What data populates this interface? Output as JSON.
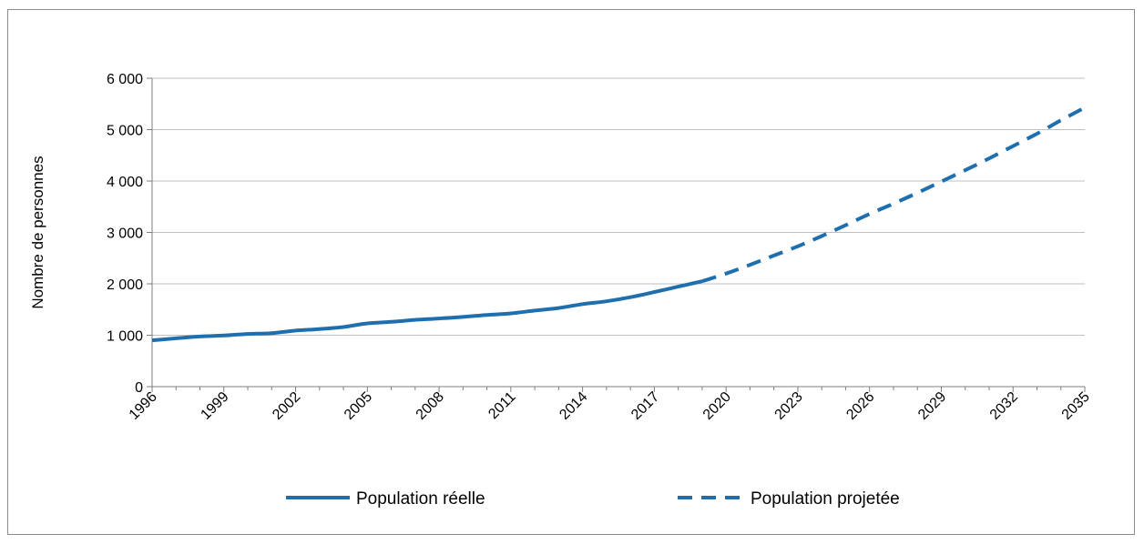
{
  "chart_data": {
    "type": "line",
    "title": "",
    "ylabel": "Nombre de personnes",
    "xlabel": "",
    "xlim": [
      1996,
      2035
    ],
    "ylim": [
      0,
      6000
    ],
    "grid": "horizontal",
    "legend_position": "bottom",
    "x_tick_labels": [
      "1996",
      "1999",
      "2002",
      "2005",
      "2008",
      "2011",
      "2014",
      "2017",
      "2020",
      "2023",
      "2026",
      "2029",
      "2032",
      "2035"
    ],
    "y_tick_labels": [
      "0",
      "1 000",
      "2 000",
      "3 000",
      "4 000",
      "5 000",
      "6 000"
    ],
    "series": [
      {
        "name": "Population réelle",
        "style": "solid",
        "color": "#1f6fae",
        "points": [
          [
            1996,
            900
          ],
          [
            1997,
            940
          ],
          [
            1998,
            975
          ],
          [
            1999,
            995
          ],
          [
            2000,
            1025
          ],
          [
            2001,
            1040
          ],
          [
            2002,
            1090
          ],
          [
            2003,
            1120
          ],
          [
            2004,
            1160
          ],
          [
            2005,
            1230
          ],
          [
            2006,
            1260
          ],
          [
            2007,
            1300
          ],
          [
            2008,
            1325
          ],
          [
            2009,
            1355
          ],
          [
            2010,
            1395
          ],
          [
            2011,
            1425
          ],
          [
            2012,
            1480
          ],
          [
            2013,
            1530
          ],
          [
            2014,
            1605
          ],
          [
            2015,
            1660
          ],
          [
            2016,
            1740
          ],
          [
            2017,
            1840
          ],
          [
            2018,
            1945
          ],
          [
            2019,
            2050
          ]
        ]
      },
      {
        "name": "Population projetée",
        "style": "dashed",
        "color": "#1f6fae",
        "points": [
          [
            2019,
            2050
          ],
          [
            2020,
            2200
          ],
          [
            2021,
            2370
          ],
          [
            2022,
            2550
          ],
          [
            2023,
            2730
          ],
          [
            2024,
            2930
          ],
          [
            2025,
            3140
          ],
          [
            2026,
            3360
          ],
          [
            2027,
            3560
          ],
          [
            2028,
            3770
          ],
          [
            2029,
            3990
          ],
          [
            2030,
            4210
          ],
          [
            2031,
            4440
          ],
          [
            2032,
            4680
          ],
          [
            2033,
            4920
          ],
          [
            2034,
            5180
          ],
          [
            2035,
            5430
          ]
        ]
      }
    ]
  }
}
